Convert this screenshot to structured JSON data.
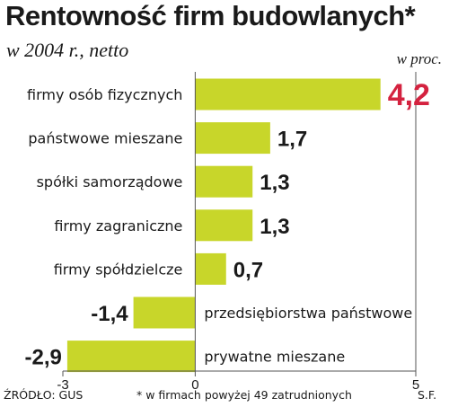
{
  "header": {
    "title": "Rentowność firm budowlanych*",
    "subtitle": "w 2004 r., netto",
    "unit": "w proc."
  },
  "footer": {
    "source": "ŹRÓDŁO: GUS",
    "note": "* w firmach powyżej 49 zatrudnionych",
    "author": "S.F."
  },
  "colors": {
    "bar": "#c8d62a",
    "highlight": "#d4223f",
    "axis": "#555555",
    "text": "#1a1a1a"
  },
  "chart_data": {
    "type": "bar",
    "orientation": "horizontal",
    "title": "Rentowność firm budowlanych*",
    "subtitle": "w 2004 r., netto",
    "unit": "w proc.",
    "categories": [
      "firmy osób fizycznych",
      "państwowe mieszane",
      "spółki samorządowe",
      "firmy zagraniczne",
      "firmy spółdzielcze",
      "przedsiębiorstwa państwowe",
      "prywatne mieszane"
    ],
    "values": [
      4.2,
      1.7,
      1.3,
      1.3,
      0.7,
      -1.4,
      -2.9
    ],
    "value_labels": [
      "4,2",
      "1,7",
      "1,3",
      "1,3",
      "0,7",
      "-1,4",
      "-2,9"
    ],
    "highlight_index": 0,
    "xlim": [
      -3,
      5
    ],
    "xticks": [
      -3,
      0,
      5
    ],
    "xtick_labels": [
      "-3",
      "0",
      "5"
    ],
    "grid": false,
    "legend": "none"
  }
}
